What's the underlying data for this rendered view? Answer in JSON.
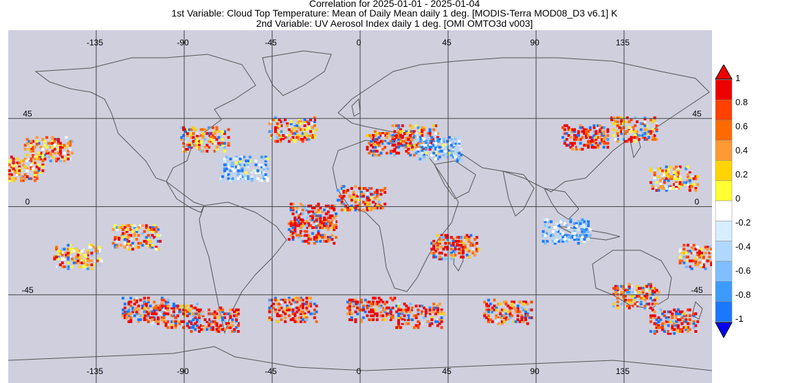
{
  "title": {
    "line1": "Correlation for 2025-01-01 - 2025-01-04",
    "line2": "1st Variable: Cloud Top Temperature: Mean of Daily Mean daily 1 deg. [MODIS-Terra MOD08_D3 v6.1] K",
    "line3": "2nd Variable: UV Aerosol Index daily 1 deg. [OMI OMTO3d v003]"
  },
  "map": {
    "projection": "equirectangular",
    "extent": {
      "lon": [
        -180,
        180
      ],
      "lat": [
        -90,
        90
      ]
    },
    "grid": true,
    "gridlines_lon": [
      -135,
      -90,
      -45,
      0,
      45,
      90,
      135
    ],
    "gridlines_lat": [
      45,
      0,
      -45
    ],
    "lon_tick_labels_top": [
      "-135",
      "-90",
      "-45",
      "0",
      "45",
      "90",
      "135"
    ],
    "lon_tick_labels_bottom": [
      "-135",
      "-90",
      "-45",
      "0",
      "45",
      "90",
      "135"
    ],
    "lat_tick_labels_left": [
      "45",
      "0",
      "-45"
    ],
    "lat_tick_labels_right": [
      "45",
      "0",
      "-45"
    ],
    "background_color": "#cfcfde"
  },
  "colorbar": {
    "labels": [
      "1",
      "0.8",
      "0.6",
      "0.4",
      "0.2",
      "0",
      "-0.2",
      "-0.4",
      "-0.6",
      "-0.8",
      "-1"
    ],
    "colors": [
      "#ee0000",
      "#ff4000",
      "#ff6a00",
      "#ff9933",
      "#ffd400",
      "#ffff33",
      "#ffffff",
      "#d6eeff",
      "#b0d8ff",
      "#7fbfff",
      "#3d9bff",
      "#1a78ff"
    ],
    "over_color": "#ee0000",
    "under_color": "#0000ee"
  },
  "chart_data": {
    "type": "heatmap",
    "variable": "Correlation",
    "period": "2025-01-01 - 2025-01-04",
    "value_range": [
      -1,
      1
    ],
    "clusters": [
      {
        "lon": -110,
        "lat": -52,
        "value": 0.9
      },
      {
        "lon": -95,
        "lat": -55,
        "value": 0.8
      },
      {
        "lon": -75,
        "lat": -57,
        "value": 0.9
      },
      {
        "lon": -35,
        "lat": -52,
        "value": 0.8
      },
      {
        "lon": 5,
        "lat": -52,
        "value": 0.9
      },
      {
        "lon": 30,
        "lat": -55,
        "value": 0.8
      },
      {
        "lon": 75,
        "lat": -53,
        "value": 0.8
      },
      {
        "lon": 160,
        "lat": -58,
        "value": 0.9
      },
      {
        "lon": -25,
        "lat": -12,
        "value": 0.9
      },
      {
        "lon": -25,
        "lat": -4,
        "value": 0.8
      },
      {
        "lon": 0,
        "lat": 5,
        "value": 0.7
      },
      {
        "lon": 48,
        "lat": -20,
        "value": 0.8
      },
      {
        "lon": 15,
        "lat": 33,
        "value": 0.8
      },
      {
        "lon": 27,
        "lat": 36,
        "value": 0.7
      },
      {
        "lon": 115,
        "lat": 36,
        "value": 0.9
      },
      {
        "lon": 140,
        "lat": 40,
        "value": 0.7
      },
      {
        "lon": -80,
        "lat": 35,
        "value": 0.6
      },
      {
        "lon": -35,
        "lat": 40,
        "value": 0.6
      },
      {
        "lon": -160,
        "lat": 30,
        "value": 0.6
      },
      {
        "lon": -115,
        "lat": -15,
        "value": 0.6
      },
      {
        "lon": -145,
        "lat": -25,
        "value": 0.5
      },
      {
        "lon": 175,
        "lat": -25,
        "value": 0.6
      },
      {
        "lon": 160,
        "lat": 15,
        "value": 0.5
      },
      {
        "lon": -175,
        "lat": 20,
        "value": 0.5
      },
      {
        "lon": 105,
        "lat": -12,
        "value": -0.6
      },
      {
        "lon": 140,
        "lat": -45,
        "value": 0.7
      },
      {
        "lon": -60,
        "lat": 20,
        "value": -0.5
      },
      {
        "lon": 40,
        "lat": 30,
        "value": -0.5
      }
    ]
  }
}
